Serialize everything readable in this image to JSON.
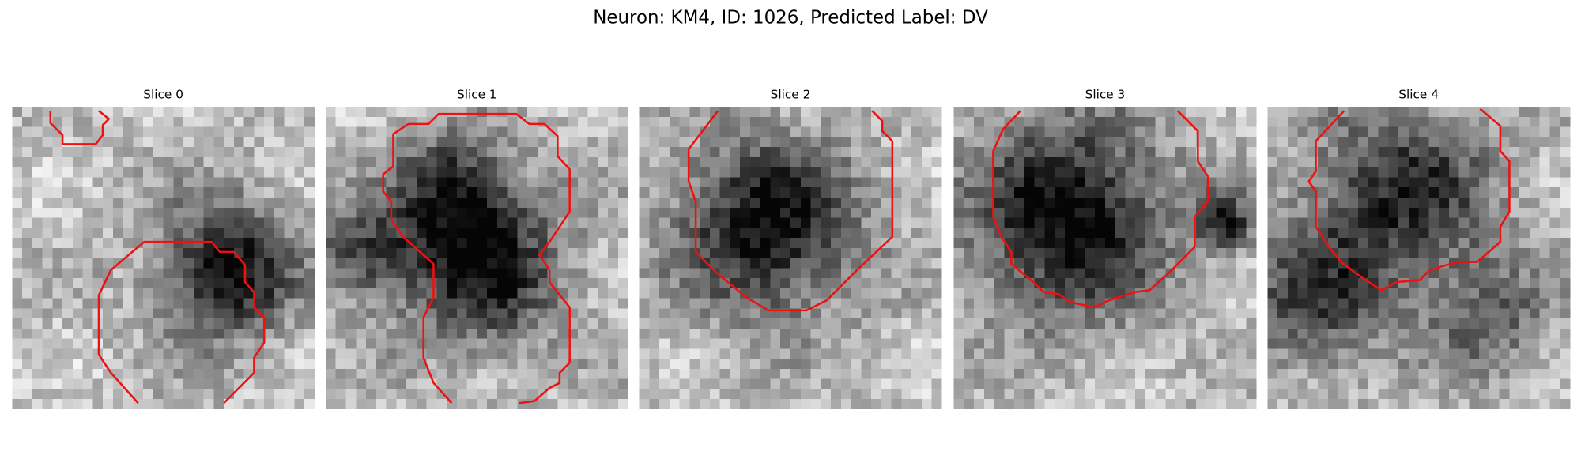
{
  "title": "Neuron: KM4, ID: 1026, Predicted Label: DV",
  "panels": [
    {
      "label": "Slice 0"
    },
    {
      "label": "Slice 1"
    },
    {
      "label": "Slice 2"
    },
    {
      "label": "Slice 3"
    },
    {
      "label": "Slice 4"
    }
  ]
}
